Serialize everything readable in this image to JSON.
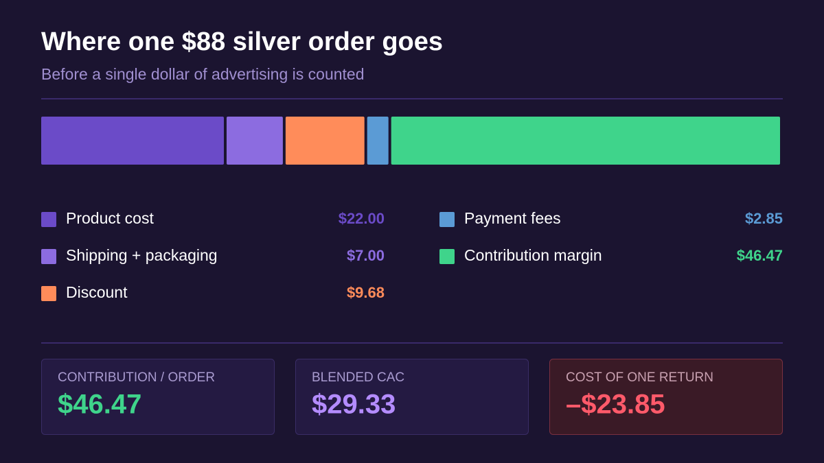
{
  "chart_data": {
    "type": "stacked-bar",
    "title": "Where one $88 silver order goes",
    "subtitle": "Before a single dollar of advertising is counted",
    "xlim": [
      0,
      88
    ],
    "series": [
      {
        "name": "Product cost",
        "color": "#6b4bc8",
        "values": [
          22
        ],
        "value_labels": [
          "$22.00"
        ]
      },
      {
        "name": "Shipping + packaging",
        "color": "#8c6ce0",
        "values": [
          7
        ],
        "value_labels": [
          "$7.00"
        ]
      },
      {
        "name": "Discount",
        "color": "#ff8c5a",
        "values": [
          9.68
        ],
        "value_labels": [
          "$9.68"
        ]
      },
      {
        "name": "Payment fees",
        "color": "#5b9bd5",
        "values": [
          2.85
        ],
        "value_labels": [
          "$2.85"
        ]
      },
      {
        "name": "Contribution margin",
        "color": "#3fd48b",
        "values": [
          46.47
        ],
        "value_labels": [
          "$46.47"
        ]
      }
    ]
  },
  "cards": [
    {
      "label": "CONTRIBUTION / ORDER",
      "value": "$46.47"
    },
    {
      "label": "BLENDED CAC",
      "value": "$29.33"
    },
    {
      "label": "COST OF ONE RETURN",
      "value": "–$23.85"
    }
  ]
}
